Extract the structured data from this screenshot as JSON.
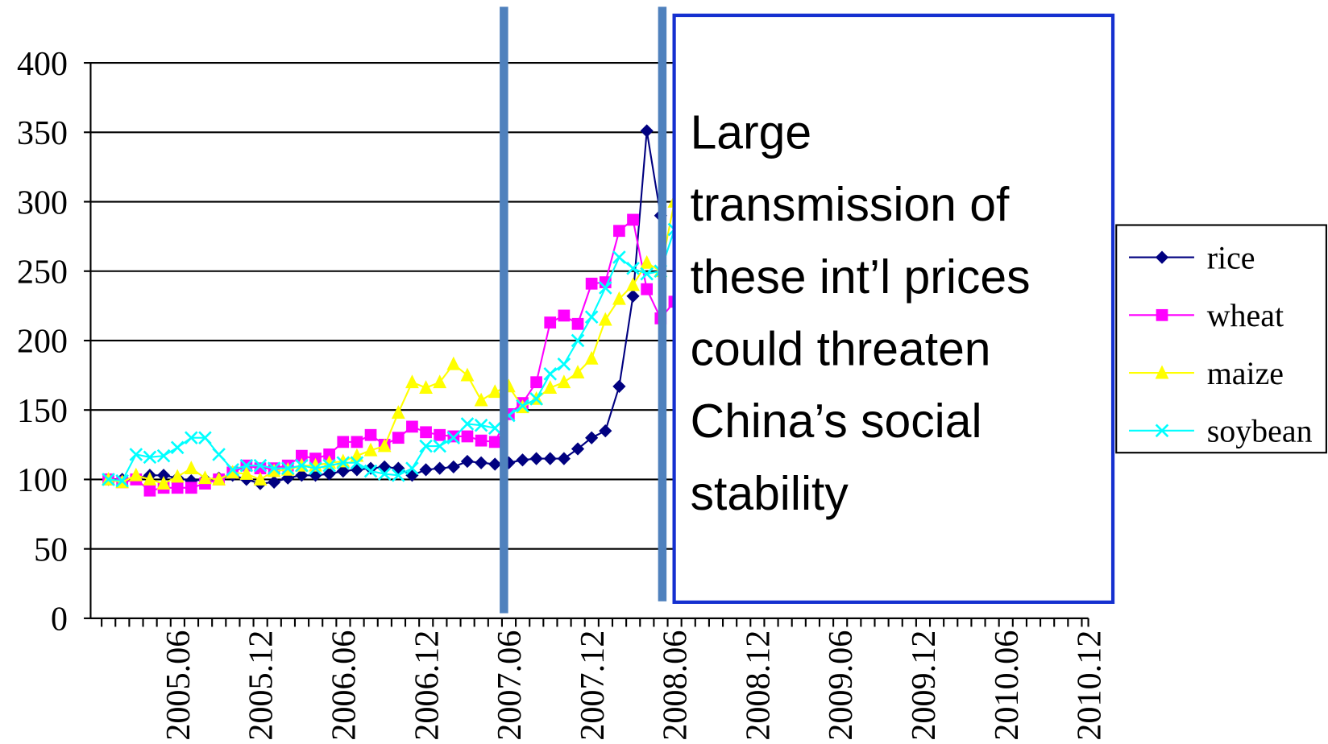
{
  "chart_data": {
    "type": "line",
    "categories": [
      null,
      null,
      null,
      null,
      null,
      "2005.06",
      null,
      null,
      null,
      null,
      null,
      "2005.12",
      null,
      null,
      null,
      null,
      null,
      "2006.06",
      null,
      null,
      null,
      null,
      null,
      "2006.12",
      null,
      null,
      null,
      null,
      null,
      "2007.06",
      null,
      null,
      null,
      null,
      null,
      "2007.12",
      null,
      null,
      null,
      null,
      null,
      "2008.06",
      null,
      null,
      null,
      null,
      null,
      "2008.12",
      null,
      null,
      null,
      null,
      null,
      "2009.06",
      null,
      null,
      null,
      null,
      null,
      "2009.12",
      null,
      null,
      null,
      null,
      null,
      "2010.06",
      null,
      null,
      null,
      null,
      null,
      "2010.12"
    ],
    "series": [
      {
        "name": "rice",
        "color": "#000080",
        "marker": "diamond",
        "values": [
          100,
          100,
          101,
          103,
          103,
          101,
          99,
          100,
          101,
          103,
          100,
          97,
          98,
          101,
          103,
          103,
          104,
          106,
          107,
          108,
          109,
          108,
          103,
          107,
          108,
          109,
          113,
          112,
          111,
          112,
          114,
          115,
          115,
          115,
          122,
          130,
          135,
          167,
          232,
          351,
          290,
          null,
          null,
          null,
          null,
          null,
          null,
          null,
          null,
          null,
          null,
          null,
          null,
          null,
          null,
          null,
          null,
          null,
          null,
          null,
          null,
          null,
          null,
          null,
          null,
          null,
          null,
          null,
          null,
          null,
          null,
          null
        ]
      },
      {
        "name": "wheat",
        "color": "#ff00ff",
        "marker": "square",
        "values": [
          100,
          98,
          100,
          92,
          94,
          94,
          94,
          97,
          100,
          105,
          110,
          108,
          108,
          110,
          117,
          115,
          118,
          127,
          127,
          132,
          125,
          130,
          138,
          134,
          132,
          131,
          131,
          128,
          127,
          147,
          155,
          170,
          213,
          218,
          212,
          241,
          242,
          279,
          287,
          237,
          216,
          228,
          null,
          null,
          null,
          null,
          null,
          null,
          null,
          null,
          null,
          null,
          null,
          null,
          null,
          null,
          null,
          null,
          null,
          null,
          null,
          null,
          null,
          null,
          null,
          null,
          null,
          null,
          null,
          null,
          null,
          null
        ]
      },
      {
        "name": "maize",
        "color": "#ffff00",
        "marker": "triangle",
        "values": [
          100,
          98,
          103,
          100,
          97,
          102,
          108,
          101,
          100,
          105,
          104,
          100,
          106,
          107,
          110,
          110,
          112,
          113,
          117,
          121,
          124,
          148,
          170,
          166,
          170,
          183,
          175,
          157,
          163,
          167,
          152,
          158,
          166,
          170,
          177,
          187,
          215,
          230,
          240,
          256,
          250,
          300,
          null,
          null,
          null,
          null,
          null,
          null,
          null,
          null,
          null,
          null,
          null,
          null,
          null,
          null,
          null,
          null,
          null,
          null,
          null,
          null,
          null,
          null,
          null,
          null,
          null,
          null,
          null,
          null,
          null,
          null
        ]
      },
      {
        "name": "soybean",
        "color": "#00ffff",
        "marker": "x",
        "values": [
          100,
          99,
          118,
          116,
          117,
          123,
          130,
          130,
          118,
          107,
          110,
          110,
          108,
          108,
          110,
          108,
          110,
          112,
          112,
          106,
          104,
          103,
          108,
          124,
          124,
          130,
          140,
          139,
          137,
          146,
          153,
          158,
          176,
          183,
          200,
          217,
          238,
          260,
          252,
          248,
          250,
          280,
          null,
          null,
          null,
          null,
          null,
          null,
          null,
          null,
          null,
          null,
          null,
          null,
          null,
          null,
          null,
          null,
          null,
          null,
          null,
          null,
          null,
          null,
          null,
          null,
          null,
          null,
          null,
          null,
          null,
          null
        ]
      }
    ],
    "ylim": [
      0,
      400
    ],
    "yticks": [
      0,
      50,
      100,
      150,
      200,
      250,
      300,
      350,
      400
    ],
    "grid": true,
    "legend": "right",
    "annotation": [
      "Large",
      "transmission of",
      "these int’l prices",
      "could threaten",
      "China’s social",
      "stability"
    ]
  }
}
